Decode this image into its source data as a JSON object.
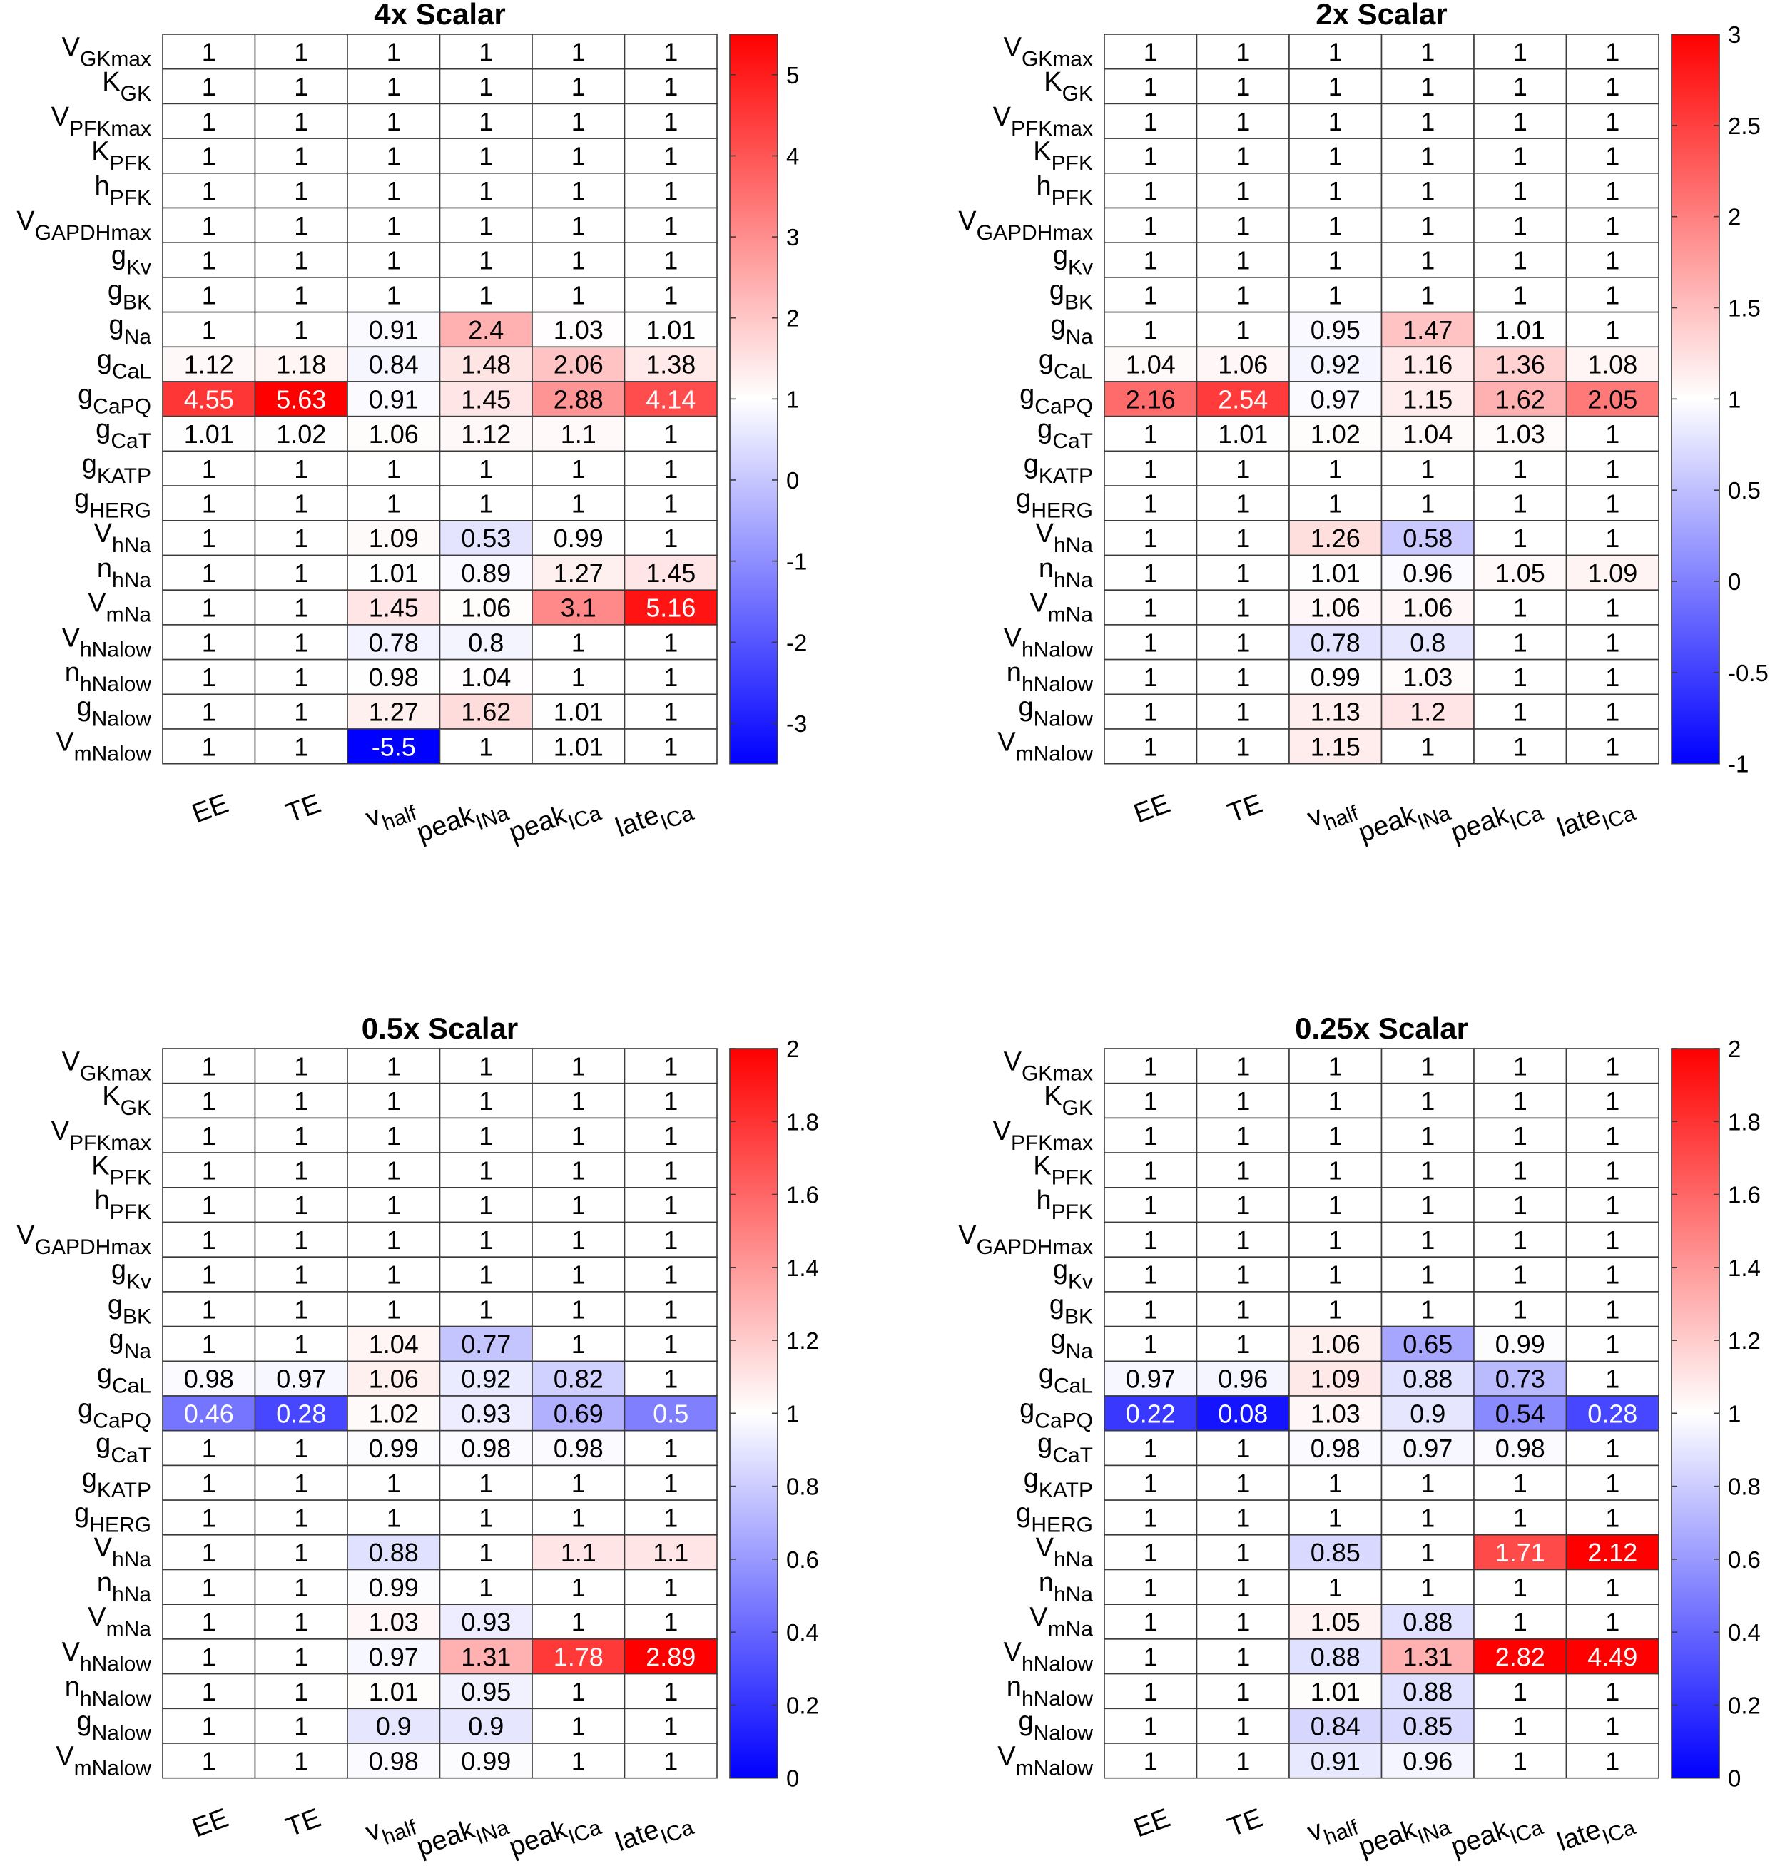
{
  "chart_data": [
    {
      "type": "heatmap",
      "title": "4x Scalar",
      "colorbar": {
        "min": -3.5,
        "max": 5.5,
        "ticks": [
          "5",
          "4",
          "3",
          "2",
          "1",
          "0",
          "-1",
          "-2",
          "-3"
        ],
        "tick_values": [
          5,
          4,
          3,
          2,
          1,
          0,
          -1,
          -2,
          -3
        ]
      },
      "values": [
        [
          "1",
          "1",
          "1",
          "1",
          "1",
          "1"
        ],
        [
          "1",
          "1",
          "1",
          "1",
          "1",
          "1"
        ],
        [
          "1",
          "1",
          "1",
          "1",
          "1",
          "1"
        ],
        [
          "1",
          "1",
          "1",
          "1",
          "1",
          "1"
        ],
        [
          "1",
          "1",
          "1",
          "1",
          "1",
          "1"
        ],
        [
          "1",
          "1",
          "1",
          "1",
          "1",
          "1"
        ],
        [
          "1",
          "1",
          "1",
          "1",
          "1",
          "1"
        ],
        [
          "1",
          "1",
          "1",
          "1",
          "1",
          "1"
        ],
        [
          "1",
          "1",
          "0.91",
          "2.4",
          "1.03",
          "1.01"
        ],
        [
          "1.12",
          "1.18",
          "0.84",
          "1.48",
          "2.06",
          "1.38"
        ],
        [
          "4.55",
          "5.63",
          "0.91",
          "1.45",
          "2.88",
          "4.14"
        ],
        [
          "1.01",
          "1.02",
          "1.06",
          "1.12",
          "1.1",
          "1"
        ],
        [
          "1",
          "1",
          "1",
          "1",
          "1",
          "1"
        ],
        [
          "1",
          "1",
          "1",
          "1",
          "1",
          "1"
        ],
        [
          "1",
          "1",
          "1.09",
          "0.53",
          "0.99",
          "1"
        ],
        [
          "1",
          "1",
          "1.01",
          "0.89",
          "1.27",
          "1.45"
        ],
        [
          "1",
          "1",
          "1.45",
          "1.06",
          "3.1",
          "5.16"
        ],
        [
          "1",
          "1",
          "0.78",
          "0.8",
          "1",
          "1"
        ],
        [
          "1",
          "1",
          "0.98",
          "1.04",
          "1",
          "1"
        ],
        [
          "1",
          "1",
          "1.27",
          "1.62",
          "1.01",
          "1"
        ],
        [
          "1",
          "1",
          "-5.5",
          "1",
          "1.01",
          "1"
        ]
      ]
    },
    {
      "type": "heatmap",
      "title": "2x Scalar",
      "colorbar": {
        "min": -1,
        "max": 3,
        "ticks": [
          "3",
          "2.5",
          "2",
          "1.5",
          "1",
          "0.5",
          "0",
          "-0.5",
          "-1"
        ],
        "tick_values": [
          3,
          2.5,
          2,
          1.5,
          1,
          0.5,
          0,
          -0.5,
          -1
        ]
      },
      "values": [
        [
          "1",
          "1",
          "1",
          "1",
          "1",
          "1"
        ],
        [
          "1",
          "1",
          "1",
          "1",
          "1",
          "1"
        ],
        [
          "1",
          "1",
          "1",
          "1",
          "1",
          "1"
        ],
        [
          "1",
          "1",
          "1",
          "1",
          "1",
          "1"
        ],
        [
          "1",
          "1",
          "1",
          "1",
          "1",
          "1"
        ],
        [
          "1",
          "1",
          "1",
          "1",
          "1",
          "1"
        ],
        [
          "1",
          "1",
          "1",
          "1",
          "1",
          "1"
        ],
        [
          "1",
          "1",
          "1",
          "1",
          "1",
          "1"
        ],
        [
          "1",
          "1",
          "0.95",
          "1.47",
          "1.01",
          "1"
        ],
        [
          "1.04",
          "1.06",
          "0.92",
          "1.16",
          "1.36",
          "1.08"
        ],
        [
          "2.16",
          "2.54",
          "0.97",
          "1.15",
          "1.62",
          "2.05"
        ],
        [
          "1",
          "1.01",
          "1.02",
          "1.04",
          "1.03",
          "1"
        ],
        [
          "1",
          "1",
          "1",
          "1",
          "1",
          "1"
        ],
        [
          "1",
          "1",
          "1",
          "1",
          "1",
          "1"
        ],
        [
          "1",
          "1",
          "1.26",
          "0.58",
          "1",
          "1"
        ],
        [
          "1",
          "1",
          "1.01",
          "0.96",
          "1.05",
          "1.09"
        ],
        [
          "1",
          "1",
          "1.06",
          "1.06",
          "1",
          "1"
        ],
        [
          "1",
          "1",
          "0.78",
          "0.8",
          "1",
          "1"
        ],
        [
          "1",
          "1",
          "0.99",
          "1.03",
          "1",
          "1"
        ],
        [
          "1",
          "1",
          "1.13",
          "1.2",
          "1",
          "1"
        ],
        [
          "1",
          "1",
          "1.15",
          "1",
          "1",
          "1"
        ]
      ]
    },
    {
      "type": "heatmap",
      "title": "0.5x Scalar",
      "colorbar": {
        "min": 0,
        "max": 2,
        "ticks": [
          "2",
          "1.8",
          "1.6",
          "1.4",
          "1.2",
          "1",
          "0.8",
          "0.6",
          "0.4",
          "0.2",
          "0"
        ],
        "tick_values": [
          2,
          1.8,
          1.6,
          1.4,
          1.2,
          1,
          0.8,
          0.6,
          0.4,
          0.2,
          0
        ]
      },
      "values": [
        [
          "1",
          "1",
          "1",
          "1",
          "1",
          "1"
        ],
        [
          "1",
          "1",
          "1",
          "1",
          "1",
          "1"
        ],
        [
          "1",
          "1",
          "1",
          "1",
          "1",
          "1"
        ],
        [
          "1",
          "1",
          "1",
          "1",
          "1",
          "1"
        ],
        [
          "1",
          "1",
          "1",
          "1",
          "1",
          "1"
        ],
        [
          "1",
          "1",
          "1",
          "1",
          "1",
          "1"
        ],
        [
          "1",
          "1",
          "1",
          "1",
          "1",
          "1"
        ],
        [
          "1",
          "1",
          "1",
          "1",
          "1",
          "1"
        ],
        [
          "1",
          "1",
          "1.04",
          "0.77",
          "1",
          "1"
        ],
        [
          "0.98",
          "0.97",
          "1.06",
          "0.92",
          "0.82",
          "1"
        ],
        [
          "0.46",
          "0.28",
          "1.02",
          "0.93",
          "0.69",
          "0.5"
        ],
        [
          "1",
          "1",
          "0.99",
          "0.98",
          "0.98",
          "1"
        ],
        [
          "1",
          "1",
          "1",
          "1",
          "1",
          "1"
        ],
        [
          "1",
          "1",
          "1",
          "1",
          "1",
          "1"
        ],
        [
          "1",
          "1",
          "0.88",
          "1",
          "1.1",
          "1.1"
        ],
        [
          "1",
          "1",
          "0.99",
          "1",
          "1",
          "1"
        ],
        [
          "1",
          "1",
          "1.03",
          "0.93",
          "1",
          "1"
        ],
        [
          "1",
          "1",
          "0.97",
          "1.31",
          "1.78",
          "2.89"
        ],
        [
          "1",
          "1",
          "1.01",
          "0.95",
          "1",
          "1"
        ],
        [
          "1",
          "1",
          "0.9",
          "0.9",
          "1",
          "1"
        ],
        [
          "1",
          "1",
          "0.98",
          "0.99",
          "1",
          "1"
        ]
      ]
    },
    {
      "type": "heatmap",
      "title": "0.25x Scalar",
      "colorbar": {
        "min": 0,
        "max": 2,
        "ticks": [
          "2",
          "1.8",
          "1.6",
          "1.4",
          "1.2",
          "1",
          "0.8",
          "0.6",
          "0.4",
          "0.2",
          "0"
        ],
        "tick_values": [
          2,
          1.8,
          1.6,
          1.4,
          1.2,
          1,
          0.8,
          0.6,
          0.4,
          0.2,
          0
        ]
      },
      "values": [
        [
          "1",
          "1",
          "1",
          "1",
          "1",
          "1"
        ],
        [
          "1",
          "1",
          "1",
          "1",
          "1",
          "1"
        ],
        [
          "1",
          "1",
          "1",
          "1",
          "1",
          "1"
        ],
        [
          "1",
          "1",
          "1",
          "1",
          "1",
          "1"
        ],
        [
          "1",
          "1",
          "1",
          "1",
          "1",
          "1"
        ],
        [
          "1",
          "1",
          "1",
          "1",
          "1",
          "1"
        ],
        [
          "1",
          "1",
          "1",
          "1",
          "1",
          "1"
        ],
        [
          "1",
          "1",
          "1",
          "1",
          "1",
          "1"
        ],
        [
          "1",
          "1",
          "1.06",
          "0.65",
          "0.99",
          "1"
        ],
        [
          "0.97",
          "0.96",
          "1.09",
          "0.88",
          "0.73",
          "1"
        ],
        [
          "0.22",
          "0.08",
          "1.03",
          "0.9",
          "0.54",
          "0.28"
        ],
        [
          "1",
          "1",
          "0.98",
          "0.97",
          "0.98",
          "1"
        ],
        [
          "1",
          "1",
          "1",
          "1",
          "1",
          "1"
        ],
        [
          "1",
          "1",
          "1",
          "1",
          "1",
          "1"
        ],
        [
          "1",
          "1",
          "0.85",
          "1",
          "1.71",
          "2.12"
        ],
        [
          "1",
          "1",
          "1",
          "1",
          "1",
          "1"
        ],
        [
          "1",
          "1",
          "1.05",
          "0.88",
          "1",
          "1"
        ],
        [
          "1",
          "1",
          "0.88",
          "1.31",
          "2.82",
          "4.49"
        ],
        [
          "1",
          "1",
          "1.01",
          "0.88",
          "1",
          "1"
        ],
        [
          "1",
          "1",
          "0.84",
          "0.85",
          "1",
          "1"
        ],
        [
          "1",
          "1",
          "0.91",
          "0.96",
          "1",
          "1"
        ]
      ]
    }
  ],
  "row_labels": [
    {
      "main": "V",
      "sub": "GKmax"
    },
    {
      "main": "K",
      "sub": "GK"
    },
    {
      "main": "V",
      "sub": "PFKmax"
    },
    {
      "main": "K",
      "sub": "PFK"
    },
    {
      "main": "h",
      "sub": "PFK"
    },
    {
      "main": "V",
      "sub": "GAPDHmax"
    },
    {
      "main": "g",
      "sub": "Kv"
    },
    {
      "main": "g",
      "sub": "BK"
    },
    {
      "main": "g",
      "sub": "Na"
    },
    {
      "main": "g",
      "sub": "CaL"
    },
    {
      "main": "g",
      "sub": "CaPQ"
    },
    {
      "main": "g",
      "sub": "CaT"
    },
    {
      "main": "g",
      "sub": "KATP"
    },
    {
      "main": "g",
      "sub": "HERG"
    },
    {
      "main": "V",
      "sub": "hNa"
    },
    {
      "main": "n",
      "sub": "hNa"
    },
    {
      "main": "V",
      "sub": "mNa"
    },
    {
      "main": "V",
      "sub": "hNalow"
    },
    {
      "main": "n",
      "sub": "hNalow"
    },
    {
      "main": "g",
      "sub": "Nalow"
    },
    {
      "main": "V",
      "sub": "mNalow"
    }
  ],
  "col_labels": [
    {
      "main": "EE",
      "sub": ""
    },
    {
      "main": "TE",
      "sub": ""
    },
    {
      "main": "v",
      "sub": "half"
    },
    {
      "main": "peak",
      "sub": "INa"
    },
    {
      "main": "peak",
      "sub": "ICa"
    },
    {
      "main": "late",
      "sub": "ICa"
    }
  ]
}
